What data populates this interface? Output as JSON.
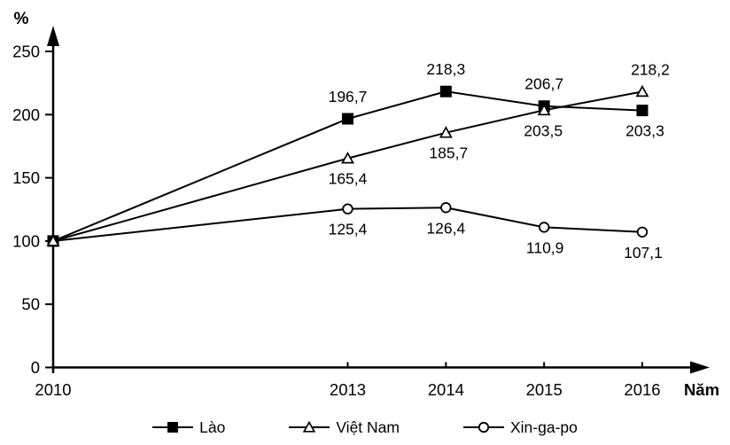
{
  "chart_data": {
    "type": "line",
    "title": "",
    "ylabel": "%",
    "xlabel": "Năm",
    "x": [
      2010,
      2013,
      2014,
      2015,
      2016
    ],
    "x_tick_labels": [
      "2010",
      "2013",
      "2014",
      "2015",
      "2016"
    ],
    "y_ticks": [
      0,
      50,
      100,
      150,
      200,
      250
    ],
    "y_tick_labels": [
      "0",
      "50",
      "100",
      "150",
      "200",
      "250"
    ],
    "ylim": [
      0,
      250
    ],
    "grid": false,
    "legend_position": "bottom",
    "line_color": "#000000",
    "background_color": "#ffffff",
    "series": [
      {
        "name": "Lào",
        "marker": "square-filled",
        "values": [
          100,
          196.7,
          218.3,
          206.7,
          203.3
        ],
        "labels": [
          "",
          "196,7",
          "218,3",
          "206,7",
          "203,3"
        ],
        "label_pos": [
          "none",
          "above",
          "above",
          "above",
          "below"
        ],
        "label_dx": [
          0,
          0,
          0,
          0,
          3
        ]
      },
      {
        "name": "Việt Nam",
        "marker": "triangle-open",
        "values": [
          100,
          165.4,
          185.7,
          203.5,
          218.2
        ],
        "labels": [
          "",
          "165,4",
          "185,7",
          "203,5",
          "218,2"
        ],
        "label_pos": [
          "none",
          "below",
          "below",
          "below",
          "above"
        ],
        "label_dx": [
          0,
          0,
          3,
          -1,
          9
        ]
      },
      {
        "name": "Xin-ga-po",
        "marker": "circle-open",
        "values": [
          100,
          125.4,
          126.4,
          110.9,
          107.1
        ],
        "labels": [
          "",
          "125,4",
          "126,4",
          "110,9",
          "107,1"
        ],
        "label_pos": [
          "none",
          "below",
          "below",
          "below",
          "below"
        ],
        "label_dx": [
          0,
          0,
          0,
          1,
          1
        ]
      }
    ]
  },
  "legend": {
    "items": [
      {
        "label": "Lào",
        "marker": "square-filled"
      },
      {
        "label": "Việt Nam",
        "marker": "triangle-open"
      },
      {
        "label": "Xin-ga-po",
        "marker": "circle-open"
      }
    ]
  }
}
